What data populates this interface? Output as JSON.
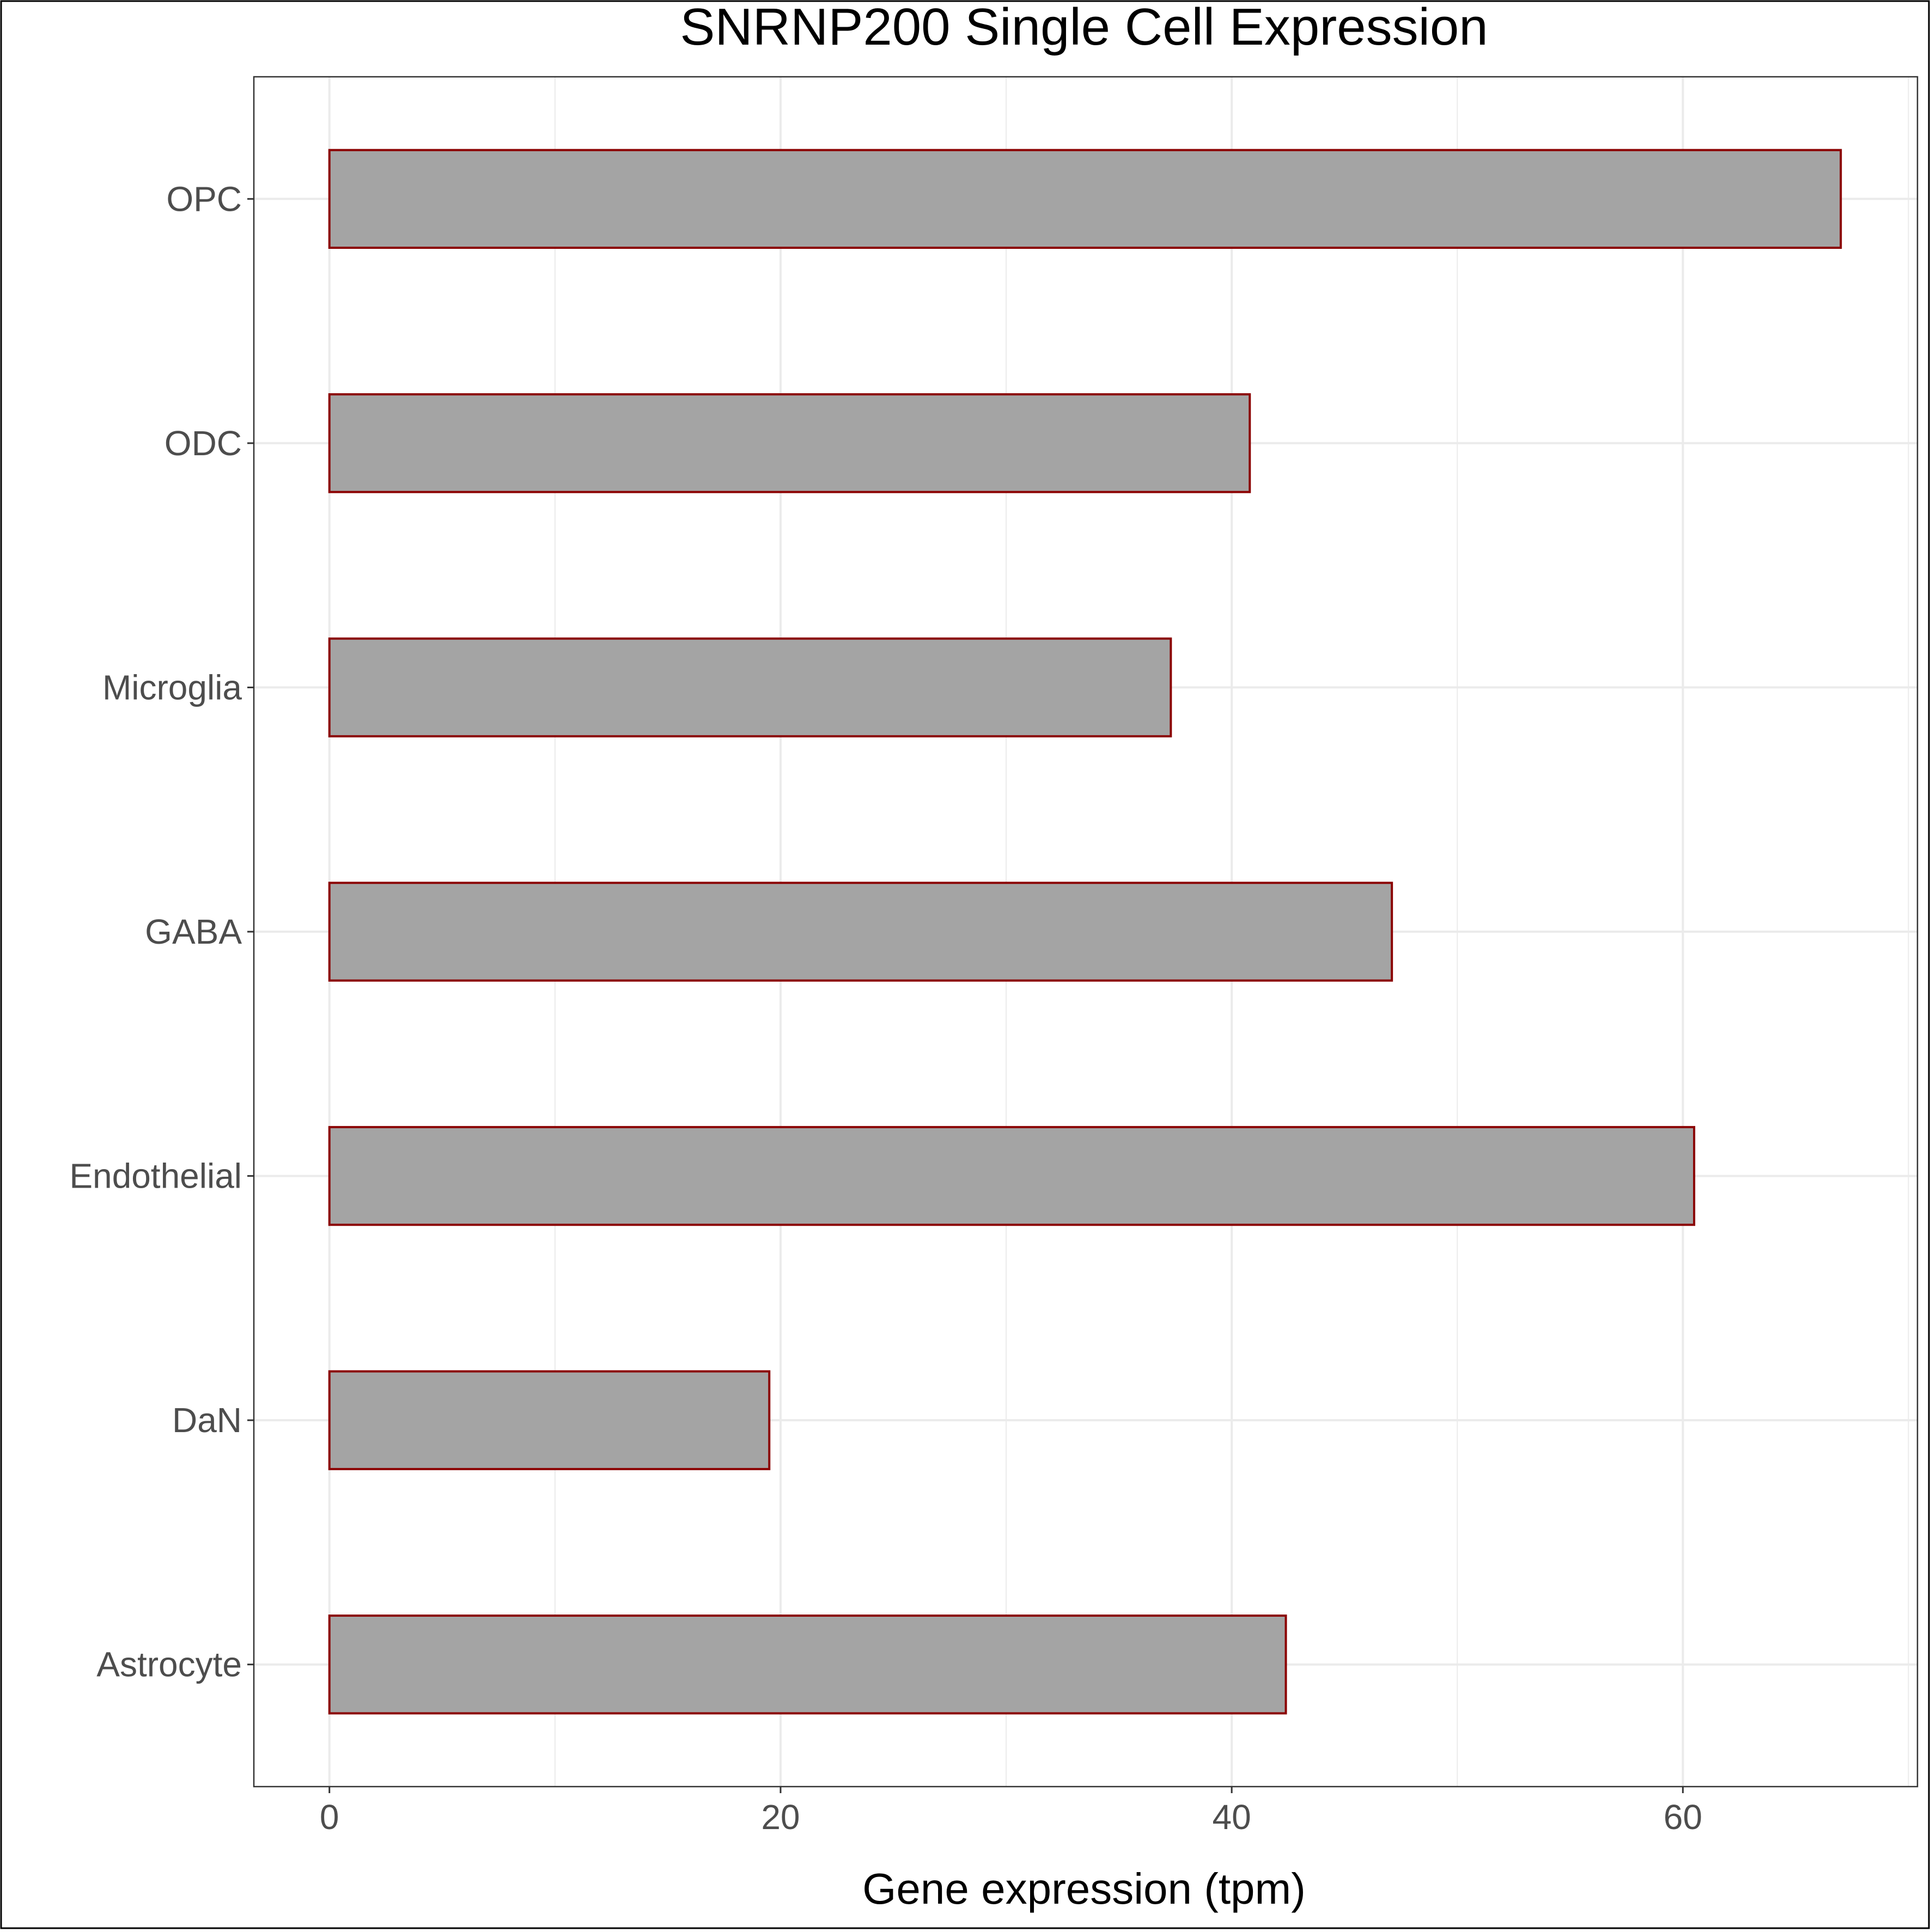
{
  "chart_data": {
    "type": "bar",
    "orientation": "horizontal",
    "title": "SNRNP200 Single Cell Expression",
    "xlabel": "Gene expression (tpm)",
    "ylabel": "",
    "categories": [
      "Astrocyte",
      "DaN",
      "Endothelial",
      "GABA",
      "Microglia",
      "ODC",
      "OPC"
    ],
    "values": [
      42.4,
      19.5,
      60.5,
      47.1,
      37.3,
      40.8,
      67.0
    ],
    "xlim": [
      -3.35,
      70.4
    ],
    "xticks": [
      0,
      20,
      40,
      60
    ],
    "xtick_labels": [
      "0",
      "20",
      "40",
      "60"
    ],
    "grid": true,
    "colors": {
      "bar_fill": "#a4a4a4",
      "bar_stroke": "#8b0000",
      "grid": "#ebebeb",
      "axis_text": "#4d4d4d",
      "title_text": "#000000",
      "panel_border": "#333333",
      "outer_border": "#000000"
    }
  }
}
